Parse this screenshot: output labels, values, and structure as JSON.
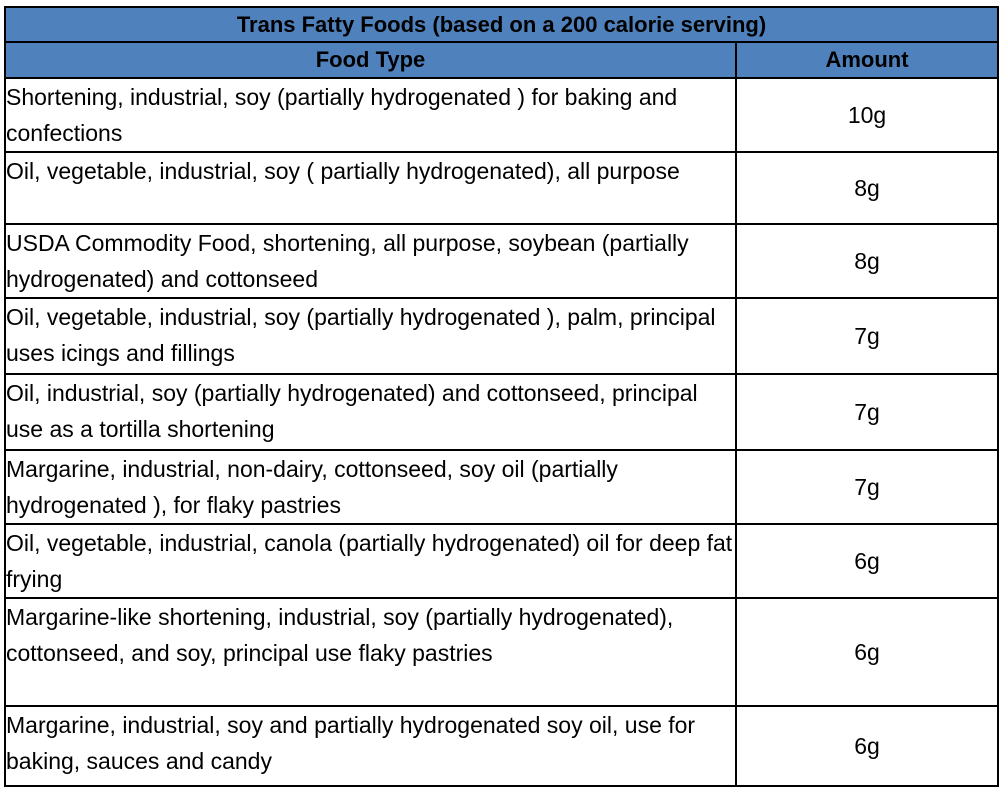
{
  "table": {
    "title": "Trans Fatty Foods (based on a 200 calorie serving)",
    "headers": {
      "food_type": "Food Type",
      "amount": "Amount"
    },
    "rows": [
      {
        "food": "Shortening, industrial, soy (partially hydrogenated ) for baking and confections",
        "amount": "10g"
      },
      {
        "food": "Oil, vegetable, industrial, soy ( partially hydrogenated), all purpose",
        "amount": "8g"
      },
      {
        "food": "USDA Commodity Food, shortening, all purpose, soybean (partially hydrogenated) and cottonseed",
        "amount": "8g"
      },
      {
        "food": "Oil, vegetable, industrial, soy (partially hydrogenated ), palm, principal uses icings and fillings",
        "amount": "7g"
      },
      {
        "food": "Oil, industrial, soy (partially hydrogenated) and cottonseed, principal use as a tortilla shortening",
        "amount": "7g"
      },
      {
        "food": "Margarine, industrial, non-dairy, cottonseed, soy oil (partially hydrogenated ), for flaky pastries",
        "amount": "7g"
      },
      {
        "food": "Oil, vegetable, industrial, canola (partially hydrogenated) oil for deep fat frying",
        "amount": "6g"
      },
      {
        "food": "Margarine-like shortening, industrial, soy (partially hydrogenated), cottonseed, and soy, principal use flaky pastries",
        "amount": "6g"
      },
      {
        "food": "Margarine, industrial, soy and partially hydrogenated soy oil, use for baking, sauces and candy",
        "amount": "6g"
      }
    ]
  }
}
